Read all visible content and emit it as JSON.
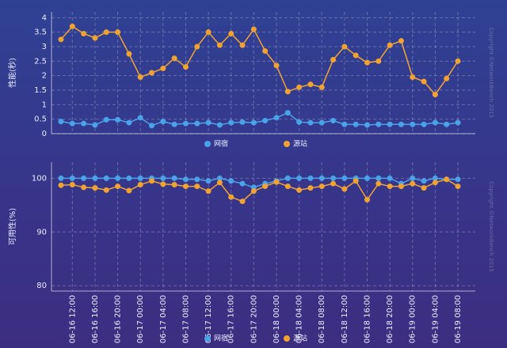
{
  "chart_data": [
    {
      "type": "line",
      "ylabel": "性能(秒)",
      "ylim": [
        0,
        4.2
      ],
      "yticks": [
        0,
        0.5,
        1,
        1.5,
        2,
        2.5,
        3,
        3.5,
        4
      ],
      "grid": true,
      "legend": "bottom",
      "watermark": "Copyright ©NetworkBench 2015",
      "series": [
        {
          "name": "网宿",
          "color": "#4aa3e8",
          "values": [
            0.42,
            0.35,
            0.35,
            0.3,
            0.48,
            0.48,
            0.38,
            0.55,
            0.28,
            0.42,
            0.32,
            0.35,
            0.35,
            0.38,
            0.3,
            0.38,
            0.4,
            0.38,
            0.45,
            0.55,
            0.72,
            0.4,
            0.38,
            0.38,
            0.45,
            0.32,
            0.32,
            0.3,
            0.32,
            0.32,
            0.32,
            0.32,
            0.32,
            0.38,
            0.32,
            0.38
          ]
        },
        {
          "name": "源站",
          "color": "#f0a232",
          "values": [
            3.25,
            3.7,
            3.45,
            3.3,
            3.5,
            3.5,
            2.75,
            1.95,
            2.1,
            2.25,
            2.6,
            2.3,
            3.0,
            3.5,
            3.05,
            3.45,
            3.05,
            3.6,
            2.85,
            2.35,
            1.45,
            1.6,
            1.7,
            1.6,
            2.55,
            3.0,
            2.7,
            2.45,
            2.5,
            3.05,
            3.2,
            1.95,
            1.8,
            1.35,
            1.9,
            2.5
          ]
        }
      ]
    },
    {
      "type": "line",
      "ylabel": "可用性(%)",
      "ylim": [
        79,
        103
      ],
      "yticks": [
        80,
        90,
        100
      ],
      "grid": true,
      "legend": "bottom",
      "watermark": "Copyright ©NetworkBench 2015",
      "categories": [
        null,
        "06-16 12:00",
        null,
        "06-16 16:00",
        null,
        "06-16 20:00",
        null,
        "06-17 00:00",
        null,
        "06-17 04:00",
        null,
        "06-17 08:00",
        null,
        "06-17 12:00",
        null,
        "06-17 16:00",
        null,
        "06-17 20:00",
        null,
        "06-18 00:00",
        null,
        "06-18 04:00",
        null,
        "06-18 08:00",
        null,
        "06-18 12:00",
        null,
        "06-18 16:00",
        null,
        "06-18 20:00",
        null,
        "06-19 00:00",
        null,
        "06-19 04:00",
        null,
        "06-19 08:00"
      ],
      "series": [
        {
          "name": "网宿",
          "color": "#4aa3e8",
          "values": [
            100,
            100,
            100,
            100,
            100,
            100,
            100,
            100,
            100,
            100,
            100,
            99.8,
            99.8,
            99.5,
            100,
            99.5,
            99,
            98.3,
            99,
            99.5,
            100,
            100,
            100,
            100,
            100,
            100,
            100,
            100,
            100,
            100,
            99,
            100,
            99.5,
            100,
            99.8,
            99.8
          ]
        },
        {
          "name": "源站",
          "color": "#f0a232",
          "values": [
            98.7,
            98.8,
            98.3,
            98.2,
            97.8,
            98.5,
            97.7,
            98.8,
            99.5,
            98.9,
            98.8,
            98.5,
            98.5,
            97.6,
            99.2,
            96.5,
            95.7,
            97.6,
            98.5,
            99.3,
            98.5,
            97.8,
            98.2,
            98.5,
            99,
            98,
            99.5,
            96,
            99,
            98.5,
            98.5,
            99,
            98.2,
            99.2,
            99.8,
            98.5
          ]
        }
      ]
    }
  ]
}
